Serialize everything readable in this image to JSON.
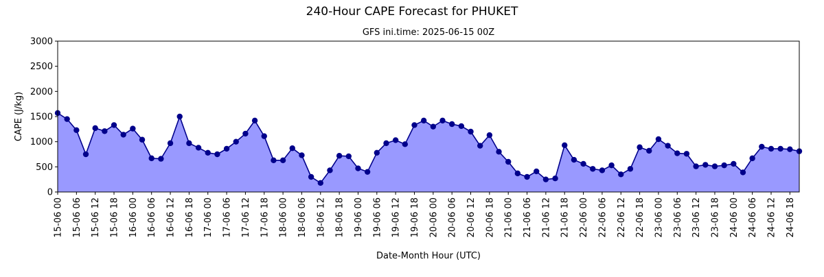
{
  "chart_data": {
    "type": "area",
    "title": "240-Hour CAPE Forecast for PHUKET",
    "subtitle": "GFS ini.time: 2025-06-15 00Z",
    "xlabel": "Date-Month Hour (UTC)",
    "ylabel": "CAPE (J/kg)",
    "ylim": [
      0,
      3000
    ],
    "yticks": [
      "0",
      "500",
      "1000",
      "1500",
      "2000",
      "2500",
      "3000"
    ],
    "step_hours": 3,
    "xticks": [
      "15-06 00",
      "15-06 06",
      "15-06 12",
      "15-06 18",
      "16-06 00",
      "16-06 06",
      "16-06 12",
      "16-06 18",
      "17-06 00",
      "17-06 06",
      "17-06 12",
      "17-06 18",
      "18-06 00",
      "18-06 06",
      "18-06 12",
      "18-06 18",
      "19-06 00",
      "19-06 06",
      "19-06 12",
      "19-06 18",
      "20-06 00",
      "20-06 06",
      "20-06 12",
      "20-06 18",
      "21-06 00",
      "21-06 06",
      "21-06 12",
      "21-06 18",
      "22-06 00",
      "22-06 06",
      "22-06 12",
      "22-06 18",
      "23-06 00",
      "23-06 06",
      "23-06 12",
      "23-06 18",
      "24-06 00",
      "24-06 06",
      "24-06 12",
      "24-06 18"
    ],
    "grid": false,
    "legend": "none",
    "series": [
      {
        "values": [
          1570,
          1450,
          1230,
          750,
          1270,
          1210,
          1330,
          1140,
          1260,
          1040,
          670,
          660,
          970,
          1500,
          970,
          880,
          780,
          750,
          860,
          1000,
          1160,
          1420,
          1110,
          630,
          630,
          870,
          730,
          300,
          180,
          430,
          720,
          710,
          470,
          400,
          780,
          970,
          1030,
          950,
          1330,
          1420,
          1300,
          1420,
          1350,
          1310,
          1200,
          920,
          1130,
          800,
          600,
          370,
          300,
          410,
          250,
          270,
          930,
          640,
          560,
          460,
          430,
          530,
          350,
          460,
          890,
          820,
          1050,
          920,
          770,
          760,
          510,
          540,
          510,
          530,
          560,
          390,
          670,
          900,
          860,
          860,
          850,
          810
        ]
      }
    ],
    "colors": {
      "line": "#00008b",
      "marker": "#00008b",
      "fill": "#9999ff"
    }
  }
}
